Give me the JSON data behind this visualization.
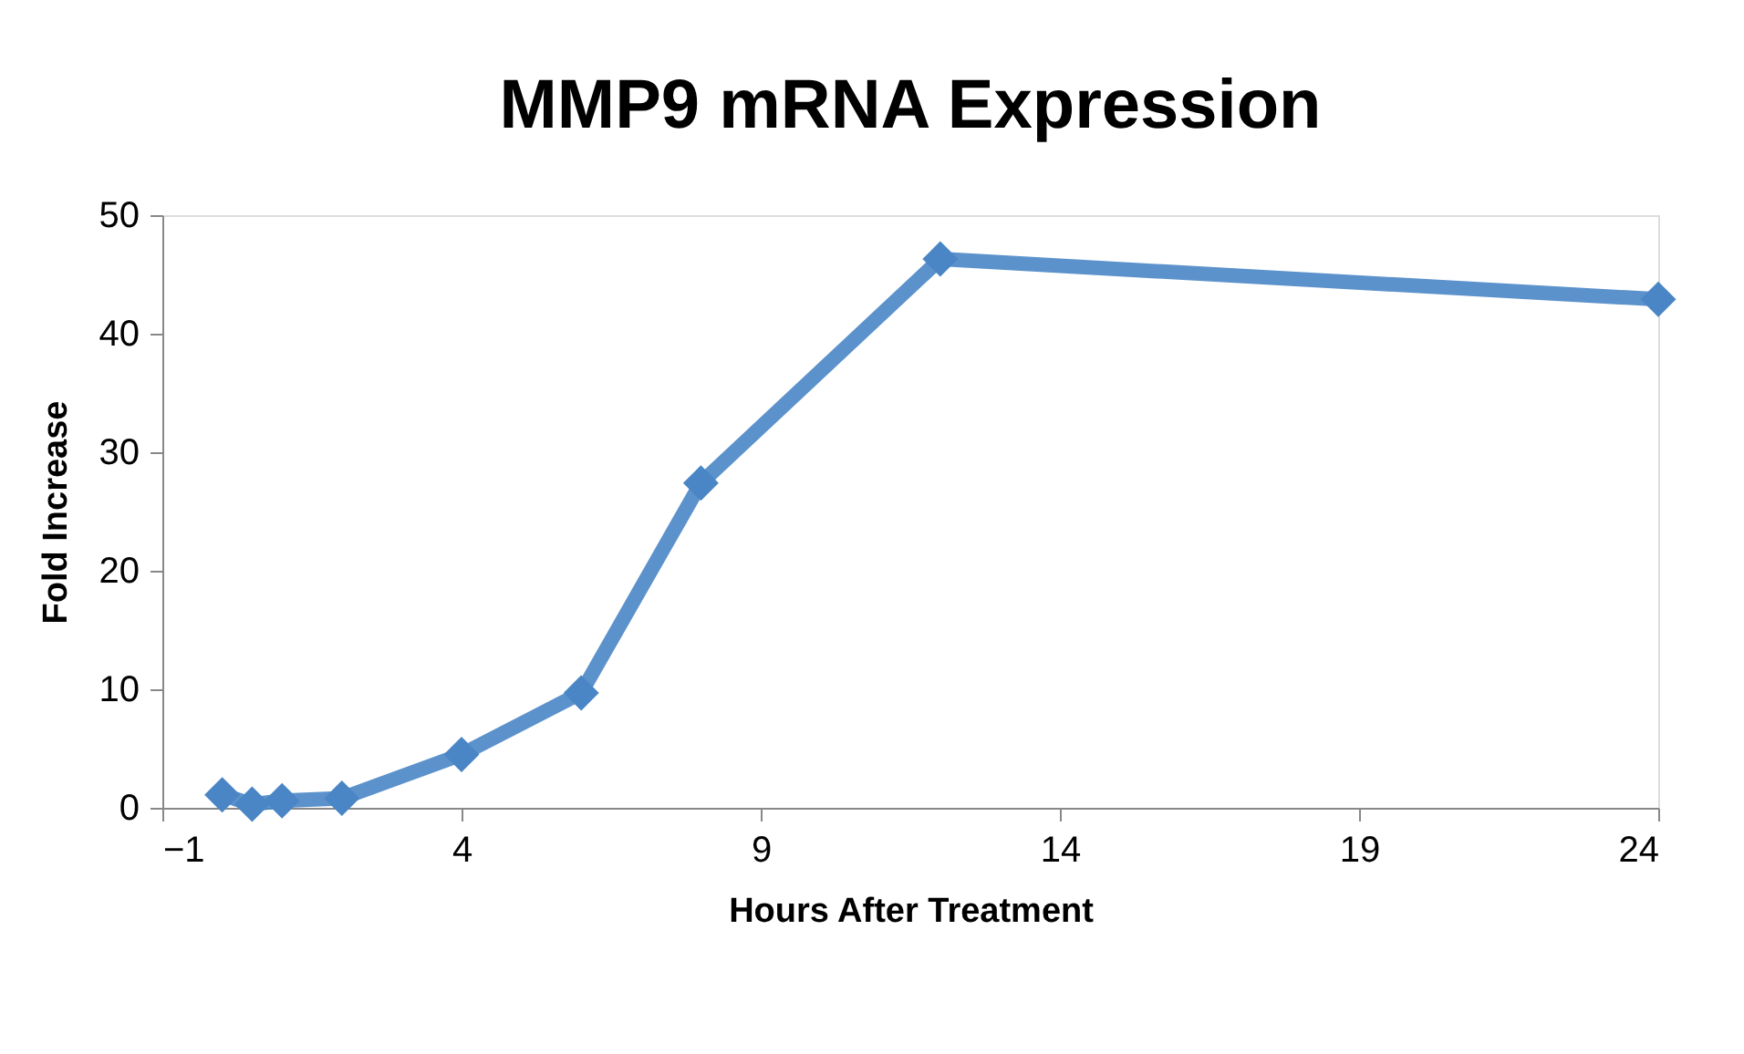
{
  "chart_data": {
    "type": "line",
    "title": "MMP9 mRNA Expression",
    "xlabel": "Hours After Treatment",
    "ylabel": "Fold Increase",
    "x": [
      0,
      0.5,
      1,
      2,
      4,
      6,
      8,
      12,
      24
    ],
    "series": [
      {
        "color": "#4a86c5",
        "values": [
          1.1,
          0.3,
          0.6,
          0.8,
          4.5,
          9.7,
          27.4,
          46.3,
          42.9
        ]
      }
    ],
    "xlim": [
      -1,
      24
    ],
    "xticks": [
      -1,
      4,
      9,
      14,
      19,
      24
    ],
    "ylim": [
      0,
      50
    ],
    "yticks": [
      0,
      10,
      20,
      30,
      40,
      50
    ],
    "grid": false,
    "legend": false,
    "marker": "diamond",
    "line_style": "solid"
  }
}
